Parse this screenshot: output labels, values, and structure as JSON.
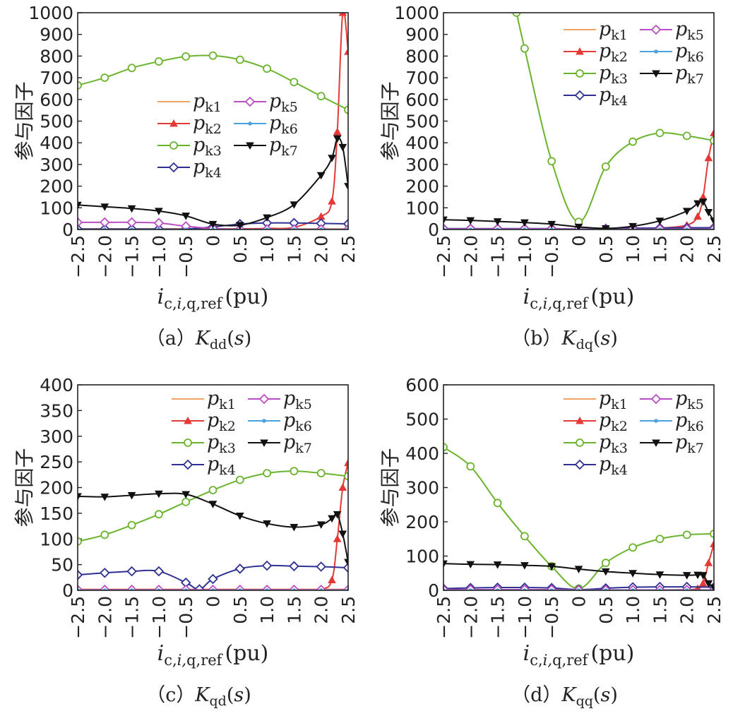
{
  "chart_data": [
    {
      "type": "line",
      "caption": "（a）Kdd(s)",
      "xlabel": "i c,i,q,ref (pu)",
      "ylabel": "参与因子",
      "xlim": [
        -2.5,
        2.5
      ],
      "ylim": [
        0,
        1000
      ],
      "xticks": [
        "-2.5",
        "-2.0",
        "-1.5",
        "-1.0",
        "-0.5",
        "0",
        "0.5",
        "1.0",
        "1.5",
        "2.0",
        "2.5"
      ],
      "yticks": [
        "0",
        "100",
        "200",
        "300",
        "400",
        "500",
        "600",
        "700",
        "800",
        "900",
        "1000"
      ],
      "legend_position": "center-right",
      "series": [
        {
          "name": "pk1",
          "x": [
            -2.5,
            -2.0,
            -1.5,
            -1.0,
            -0.5,
            0,
            0.5,
            1.0,
            1.5,
            2.0,
            2.5
          ],
          "y": [
            3,
            3,
            3,
            3,
            3,
            3,
            3,
            3,
            3,
            3,
            3
          ]
        },
        {
          "name": "pk2",
          "x": [
            -2.5,
            -2.0,
            -1.5,
            -1.0,
            -0.5,
            0,
            0.5,
            1.0,
            1.5,
            2.0,
            2.2,
            2.3,
            2.4,
            2.5
          ],
          "y": [
            2,
            2,
            2,
            2,
            2,
            2,
            3,
            5,
            10,
            60,
            130,
            450,
            1000,
            820
          ]
        },
        {
          "name": "pk3",
          "x": [
            -2.5,
            -2.0,
            -1.5,
            -1.0,
            -0.5,
            0,
            0.5,
            1.0,
            1.5,
            2.0,
            2.5
          ],
          "y": [
            665,
            700,
            745,
            775,
            798,
            802,
            783,
            742,
            680,
            615,
            552
          ]
        },
        {
          "name": "pk4",
          "x": [
            -2.5,
            -2.0,
            -1.5,
            -1.0,
            -0.5,
            0,
            0.5,
            1.0,
            1.5,
            2.0,
            2.5
          ],
          "y": [
            2,
            2,
            2,
            2,
            2,
            12,
            25,
            30,
            30,
            28,
            26
          ]
        },
        {
          "name": "pk5",
          "x": [
            -2.5,
            -2.0,
            -1.5,
            -1.0,
            -0.5,
            0,
            0.5,
            1.0,
            1.5,
            2.0,
            2.5
          ],
          "y": [
            33,
            33,
            33,
            30,
            15,
            5,
            1,
            1,
            1,
            1,
            1
          ]
        },
        {
          "name": "pk6",
          "x": [
            -2.5,
            -2.0,
            -1.5,
            -1.0,
            -0.5,
            0,
            0.5,
            1.0,
            1.5,
            2.0,
            2.5
          ],
          "y": [
            0,
            0,
            0,
            0,
            0,
            0,
            0,
            0,
            0,
            0,
            0
          ]
        },
        {
          "name": "pk7",
          "x": [
            -2.5,
            -2.0,
            -1.5,
            -1.0,
            -0.5,
            0,
            0.5,
            1.0,
            1.5,
            2.0,
            2.2,
            2.3,
            2.4,
            2.5
          ],
          "y": [
            113,
            105,
            97,
            85,
            63,
            25,
            20,
            55,
            115,
            250,
            330,
            420,
            380,
            200
          ]
        }
      ]
    },
    {
      "type": "line",
      "caption": "（b）Kdq(s)",
      "xlabel": "i c,i,q,ref (pu)",
      "ylabel": "参与因子",
      "xlim": [
        -2.5,
        2.5
      ],
      "ylim": [
        0,
        1000
      ],
      "xticks": [
        "-2.5",
        "-2.0",
        "-1.5",
        "-1.0",
        "-0.5",
        "0",
        "0.5",
        "1.0",
        "1.5",
        "2.0",
        "2.5"
      ],
      "yticks": [
        "0",
        "100",
        "200",
        "300",
        "400",
        "500",
        "600",
        "700",
        "800",
        "900",
        "1000"
      ],
      "legend_position": "top-right",
      "series": [
        {
          "name": "pk1",
          "x": [
            -2.5,
            -2.0,
            -1.5,
            -1.0,
            -0.5,
            0,
            0.5,
            1.0,
            1.5,
            2.0,
            2.5
          ],
          "y": [
            2,
            2,
            2,
            2,
            2,
            2,
            2,
            2,
            2,
            2,
            2
          ]
        },
        {
          "name": "pk2",
          "x": [
            -2.5,
            -2.0,
            -1.5,
            -1.0,
            -0.5,
            0,
            0.5,
            1.0,
            1.5,
            2.0,
            2.2,
            2.3,
            2.4,
            2.5
          ],
          "y": [
            1,
            1,
            1,
            1,
            1,
            1,
            2,
            3,
            6,
            20,
            60,
            150,
            330,
            445
          ]
        },
        {
          "name": "pk3",
          "x": [
            -1.15,
            -1.0,
            -0.5,
            0,
            0.5,
            1.0,
            1.5,
            2.0,
            2.5
          ],
          "y": [
            1000,
            835,
            315,
            35,
            290,
            405,
            445,
            432,
            410
          ]
        },
        {
          "name": "pk4",
          "x": [
            -2.5,
            -2.0,
            -1.5,
            -1.0,
            -0.5,
            0,
            0.5,
            1.0,
            1.5,
            2.0,
            2.5
          ],
          "y": [
            4,
            4,
            4,
            4,
            4,
            2,
            4,
            6,
            7,
            8,
            8
          ]
        },
        {
          "name": "pk5",
          "x": [
            -2.5,
            -2.0,
            -1.5,
            -1.0,
            -0.5,
            0,
            0.5,
            1.0,
            1.5,
            2.0,
            2.5
          ],
          "y": [
            3,
            3,
            3,
            3,
            3,
            2,
            2,
            2,
            2,
            2,
            2
          ]
        },
        {
          "name": "pk6",
          "x": [
            -2.5,
            -2.0,
            -1.5,
            -1.0,
            -0.5,
            0,
            0.5,
            1.0,
            1.5,
            2.0,
            2.5
          ],
          "y": [
            0,
            0,
            0,
            0,
            0,
            0,
            0,
            0,
            0,
            0,
            0
          ]
        },
        {
          "name": "pk7",
          "x": [
            -2.5,
            -2.0,
            -1.5,
            -1.0,
            -0.5,
            0,
            0.5,
            1.0,
            1.5,
            2.0,
            2.2,
            2.3,
            2.4,
            2.5
          ],
          "y": [
            45,
            42,
            37,
            32,
            25,
            12,
            5,
            15,
            40,
            85,
            120,
            128,
            80,
            40
          ]
        }
      ]
    },
    {
      "type": "line",
      "caption": "（c）Kqd(s)",
      "xlabel": "i c,i,q,ref (pu)",
      "ylabel": "参与因子",
      "xlim": [
        -2.5,
        2.5
      ],
      "ylim": [
        0,
        400
      ],
      "xticks": [
        "-2.5",
        "-2.0",
        "-1.5",
        "-1.0",
        "-0.5",
        "0",
        "0.5",
        "1.0",
        "1.5",
        "2.0",
        "2.5"
      ],
      "yticks": [
        "0",
        "50",
        "100",
        "150",
        "200",
        "250",
        "300",
        "350",
        "400"
      ],
      "legend_position": "top-right",
      "series": [
        {
          "name": "pk1",
          "x": [
            -2.5,
            -2.0,
            -1.5,
            -1.0,
            -0.5,
            0,
            0.5,
            1.0,
            1.5,
            2.0,
            2.5
          ],
          "y": [
            2,
            2,
            2,
            2,
            2,
            2,
            2,
            2,
            2,
            2,
            2
          ]
        },
        {
          "name": "pk2",
          "x": [
            -2.5,
            -2.0,
            -1.5,
            -1.0,
            -0.5,
            0,
            0.5,
            1.0,
            1.5,
            2.0,
            2.2,
            2.3,
            2.4,
            2.5
          ],
          "y": [
            1,
            1,
            1,
            1,
            1,
            1,
            1,
            1,
            1,
            2,
            20,
            100,
            200,
            248
          ]
        },
        {
          "name": "pk3",
          "x": [
            -2.5,
            -2.0,
            -1.5,
            -1.0,
            -0.5,
            0,
            0.5,
            1.0,
            1.5,
            2.0,
            2.5
          ],
          "y": [
            95,
            108,
            127,
            148,
            172,
            195,
            215,
            228,
            232,
            228,
            222
          ]
        },
        {
          "name": "pk4",
          "x": [
            -2.5,
            -2.0,
            -1.5,
            -1.0,
            -0.5,
            -0.25,
            0,
            0.5,
            1.0,
            1.5,
            2.0,
            2.5
          ],
          "y": [
            30,
            34,
            37,
            37,
            15,
            2,
            22,
            42,
            48,
            47,
            46,
            44
          ]
        },
        {
          "name": "pk5",
          "x": [
            -2.5,
            -2.0,
            -1.5,
            -1.0,
            -0.5,
            0,
            0.5,
            1.0,
            1.5,
            2.0,
            2.5
          ],
          "y": [
            1,
            1,
            1,
            1,
            1,
            1,
            1,
            1,
            1,
            1,
            1
          ]
        },
        {
          "name": "pk6",
          "x": [
            -2.5,
            -2.0,
            -1.5,
            -1.0,
            -0.5,
            0,
            0.5,
            1.0,
            1.5,
            2.0,
            2.5
          ],
          "y": [
            0,
            0,
            0,
            0,
            0,
            0,
            0,
            0,
            0,
            0,
            0
          ]
        },
        {
          "name": "pk7",
          "x": [
            -2.5,
            -2.0,
            -1.5,
            -1.0,
            -0.5,
            0,
            0.5,
            1.0,
            1.5,
            2.0,
            2.2,
            2.3,
            2.4,
            2.5
          ],
          "y": [
            183,
            182,
            185,
            188,
            187,
            168,
            145,
            130,
            123,
            128,
            140,
            148,
            110,
            55
          ]
        }
      ]
    },
    {
      "type": "line",
      "caption": "（d）Kqq(s)",
      "xlabel": "i c,i,q,ref (pu)",
      "ylabel": "参与因子",
      "xlim": [
        -2.5,
        2.5
      ],
      "ylim": [
        0,
        600
      ],
      "xticks": [
        "-2.5",
        "-2.0",
        "-1.5",
        "-1.0",
        "-0.5",
        "0",
        "0.5",
        "1.0",
        "1.5",
        "2.0",
        "2.5"
      ],
      "yticks": [
        "0",
        "100",
        "200",
        "300",
        "400",
        "500",
        "600"
      ],
      "legend_position": "top-right",
      "series": [
        {
          "name": "pk1",
          "x": [
            -2.5,
            -2.0,
            -1.5,
            -1.0,
            -0.5,
            0,
            0.5,
            1.0,
            1.5,
            2.0,
            2.5
          ],
          "y": [
            1,
            1,
            1,
            1,
            1,
            1,
            1,
            1,
            1,
            1,
            1
          ]
        },
        {
          "name": "pk2",
          "x": [
            -2.5,
            -2.0,
            -1.5,
            -1.0,
            -0.5,
            0,
            0.5,
            1.0,
            1.5,
            2.0,
            2.2,
            2.3,
            2.4,
            2.5
          ],
          "y": [
            1,
            1,
            1,
            1,
            1,
            1,
            1,
            1,
            1,
            2,
            5,
            20,
            80,
            135
          ]
        },
        {
          "name": "pk3",
          "x": [
            -2.5,
            -2.0,
            -1.5,
            -1.0,
            -0.5,
            0,
            0.5,
            1.0,
            1.5,
            2.0,
            2.5
          ],
          "y": [
            418,
            362,
            255,
            158,
            70,
            5,
            80,
            125,
            150,
            162,
            165
          ]
        },
        {
          "name": "pk4",
          "x": [
            -2.5,
            -2.0,
            -1.5,
            -1.0,
            -0.5,
            0,
            0.5,
            1.0,
            1.5,
            2.0,
            2.5
          ],
          "y": [
            5,
            7,
            8,
            8,
            7,
            2,
            6,
            9,
            10,
            10,
            9
          ]
        },
        {
          "name": "pk5",
          "x": [
            -2.5,
            -2.0,
            -1.5,
            -1.0,
            -0.5,
            0,
            0.5,
            1.0,
            1.5,
            2.0,
            2.5
          ],
          "y": [
            2,
            2,
            2,
            2,
            2,
            1,
            1,
            1,
            1,
            1,
            1
          ]
        },
        {
          "name": "pk6",
          "x": [
            -2.5,
            -2.0,
            -1.5,
            -1.0,
            -0.5,
            0,
            0.5,
            1.0,
            1.5,
            2.0,
            2.5
          ],
          "y": [
            0,
            0,
            0,
            0,
            0,
            0,
            0,
            0,
            0,
            0,
            0
          ]
        },
        {
          "name": "pk7",
          "x": [
            -2.5,
            -2.0,
            -1.5,
            -1.0,
            -0.5,
            0,
            0.5,
            1.0,
            1.5,
            2.0,
            2.2,
            2.3,
            2.4,
            2.5
          ],
          "y": [
            78,
            76,
            75,
            73,
            70,
            62,
            55,
            50,
            46,
            44,
            45,
            44,
            20,
            8
          ]
        }
      ]
    }
  ],
  "series_styles": {
    "pk1": {
      "color": "#f4a261",
      "marker": "none"
    },
    "pk2": {
      "color": "#e53935",
      "marker": "triangle"
    },
    "pk3": {
      "color": "#6ab42d",
      "marker": "circle"
    },
    "pk4": {
      "color": "#2e3192",
      "marker": "diamond"
    },
    "pk5": {
      "color": "#b84ec2",
      "marker": "diamond"
    },
    "pk6": {
      "color": "#4aa3df",
      "marker": "dot"
    },
    "pk7": {
      "color": "#111111",
      "marker": "triangle-down"
    }
  }
}
